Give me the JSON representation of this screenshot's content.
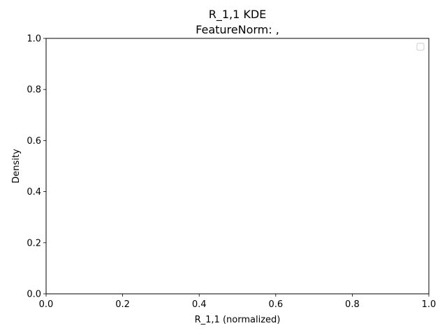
{
  "chart_data": {
    "type": "line",
    "title": "R_1,1 KDE",
    "subtitle": "FeatureNorm: ,",
    "xlabel": "R_1,1 (normalized)",
    "ylabel": "Density",
    "xlim": [
      0,
      1
    ],
    "ylim": [
      0,
      1
    ],
    "xticks": [
      "0.0",
      "0.2",
      "0.4",
      "0.6",
      "0.8",
      "1.0"
    ],
    "yticks": [
      "0.0",
      "0.2",
      "0.4",
      "0.6",
      "0.8",
      "1.0"
    ],
    "grid": false,
    "legend": "top-right",
    "series": []
  }
}
